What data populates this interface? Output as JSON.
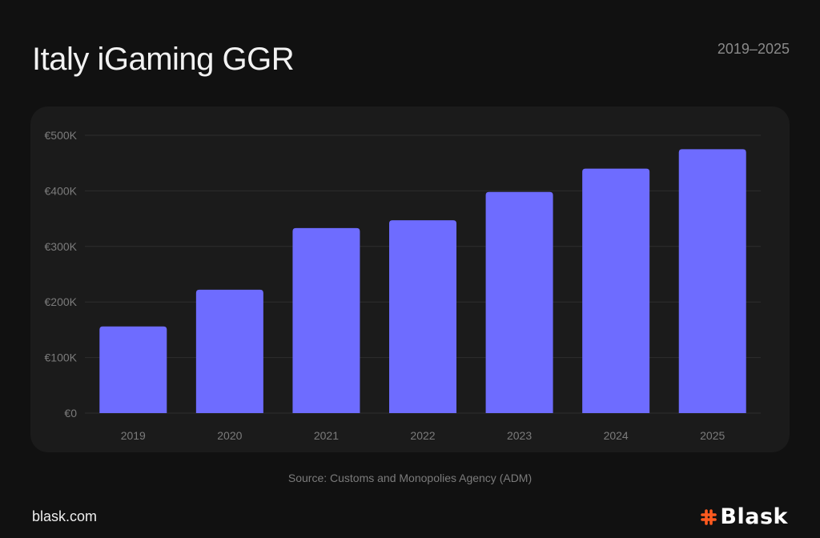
{
  "header": {
    "title": "Italy iGaming GGR",
    "date_range": "2019–2025"
  },
  "footer": {
    "source": "Source: Customs and Monopolies Agency (ADM)",
    "website": "blask.com",
    "brand_name": "Blask",
    "brand_icon": "hash-icon"
  },
  "colors": {
    "background": "#111111",
    "card": "#1b1b1b",
    "bar": "#6e6cff",
    "grid": "#2e2e2e",
    "tick_text": "#7b7b7b",
    "brand_accent": "#ff5a1f"
  },
  "chart_data": {
    "type": "bar",
    "title": "Italy iGaming GGR",
    "xlabel": "",
    "ylabel": "",
    "categories": [
      "2019",
      "2020",
      "2021",
      "2022",
      "2023",
      "2024",
      "2025"
    ],
    "values": [
      156,
      222,
      333,
      347,
      398,
      440,
      475
    ],
    "value_unit": "€K",
    "ylim": [
      0,
      500
    ],
    "yticks": [
      0,
      100,
      200,
      300,
      400,
      500
    ],
    "ytick_labels": [
      "€0",
      "€100K",
      "€200K",
      "€300K",
      "€400K",
      "€500K"
    ],
    "grid": true,
    "legend": "none"
  }
}
